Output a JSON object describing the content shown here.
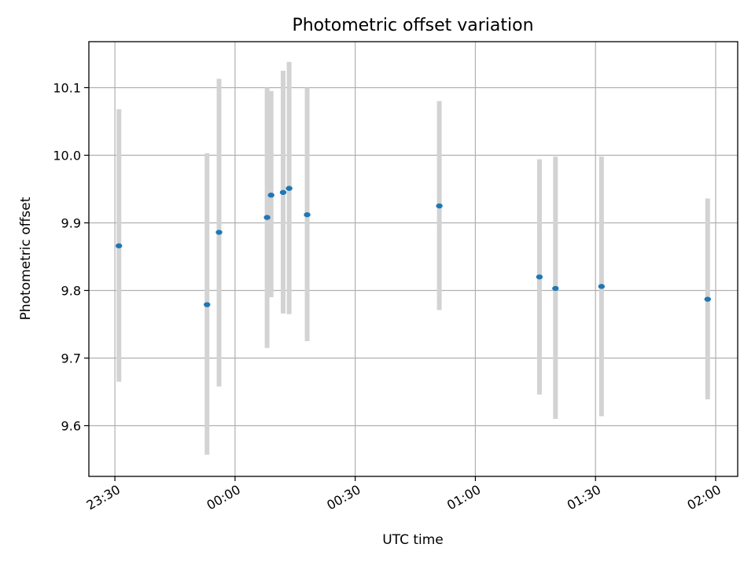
{
  "chart_data": {
    "type": "scatter",
    "title": "Photometric offset variation",
    "xlabel": "UTC time",
    "ylabel": "Photometric offset",
    "x_ticks": [
      "23:30",
      "00:00",
      "00:30",
      "01:00",
      "01:30",
      "02:00"
    ],
    "y_ticks": [
      "9.6",
      "9.7",
      "9.8",
      "9.9",
      "10.0",
      "10.1"
    ],
    "xlim": [
      "23:23:30",
      "02:05:30"
    ],
    "ylim": [
      9.525,
      10.168
    ],
    "grid": true,
    "marker_color": "#1f77b4",
    "errorbar_color": "#d3d3d3",
    "points": [
      {
        "t": "23:31",
        "y": 9.866,
        "ylo": 9.665,
        "yhi": 10.068
      },
      {
        "t": "23:53",
        "y": 9.779,
        "ylo": 9.557,
        "yhi": 10.003
      },
      {
        "t": "23:56",
        "y": 9.886,
        "ylo": 9.658,
        "yhi": 10.113
      },
      {
        "t": "00:08",
        "y": 9.908,
        "ylo": 9.715,
        "yhi": 10.1
      },
      {
        "t": "00:09",
        "y": 9.941,
        "ylo": 9.79,
        "yhi": 10.095
      },
      {
        "t": "00:12",
        "y": 9.945,
        "ylo": 9.766,
        "yhi": 10.125
      },
      {
        "t": "00:13.5",
        "y": 9.951,
        "ylo": 9.765,
        "yhi": 10.138
      },
      {
        "t": "00:18",
        "y": 9.912,
        "ylo": 9.725,
        "yhi": 10.1
      },
      {
        "t": "00:51",
        "y": 9.925,
        "ylo": 9.771,
        "yhi": 10.08
      },
      {
        "t": "01:16",
        "y": 9.82,
        "ylo": 9.646,
        "yhi": 9.994
      },
      {
        "t": "01:20",
        "y": 9.803,
        "ylo": 9.61,
        "yhi": 9.998
      },
      {
        "t": "01:31.5",
        "y": 9.806,
        "ylo": 9.614,
        "yhi": 9.998
      },
      {
        "t": "01:58",
        "y": 9.787,
        "ylo": 9.639,
        "yhi": 9.936
      }
    ]
  }
}
